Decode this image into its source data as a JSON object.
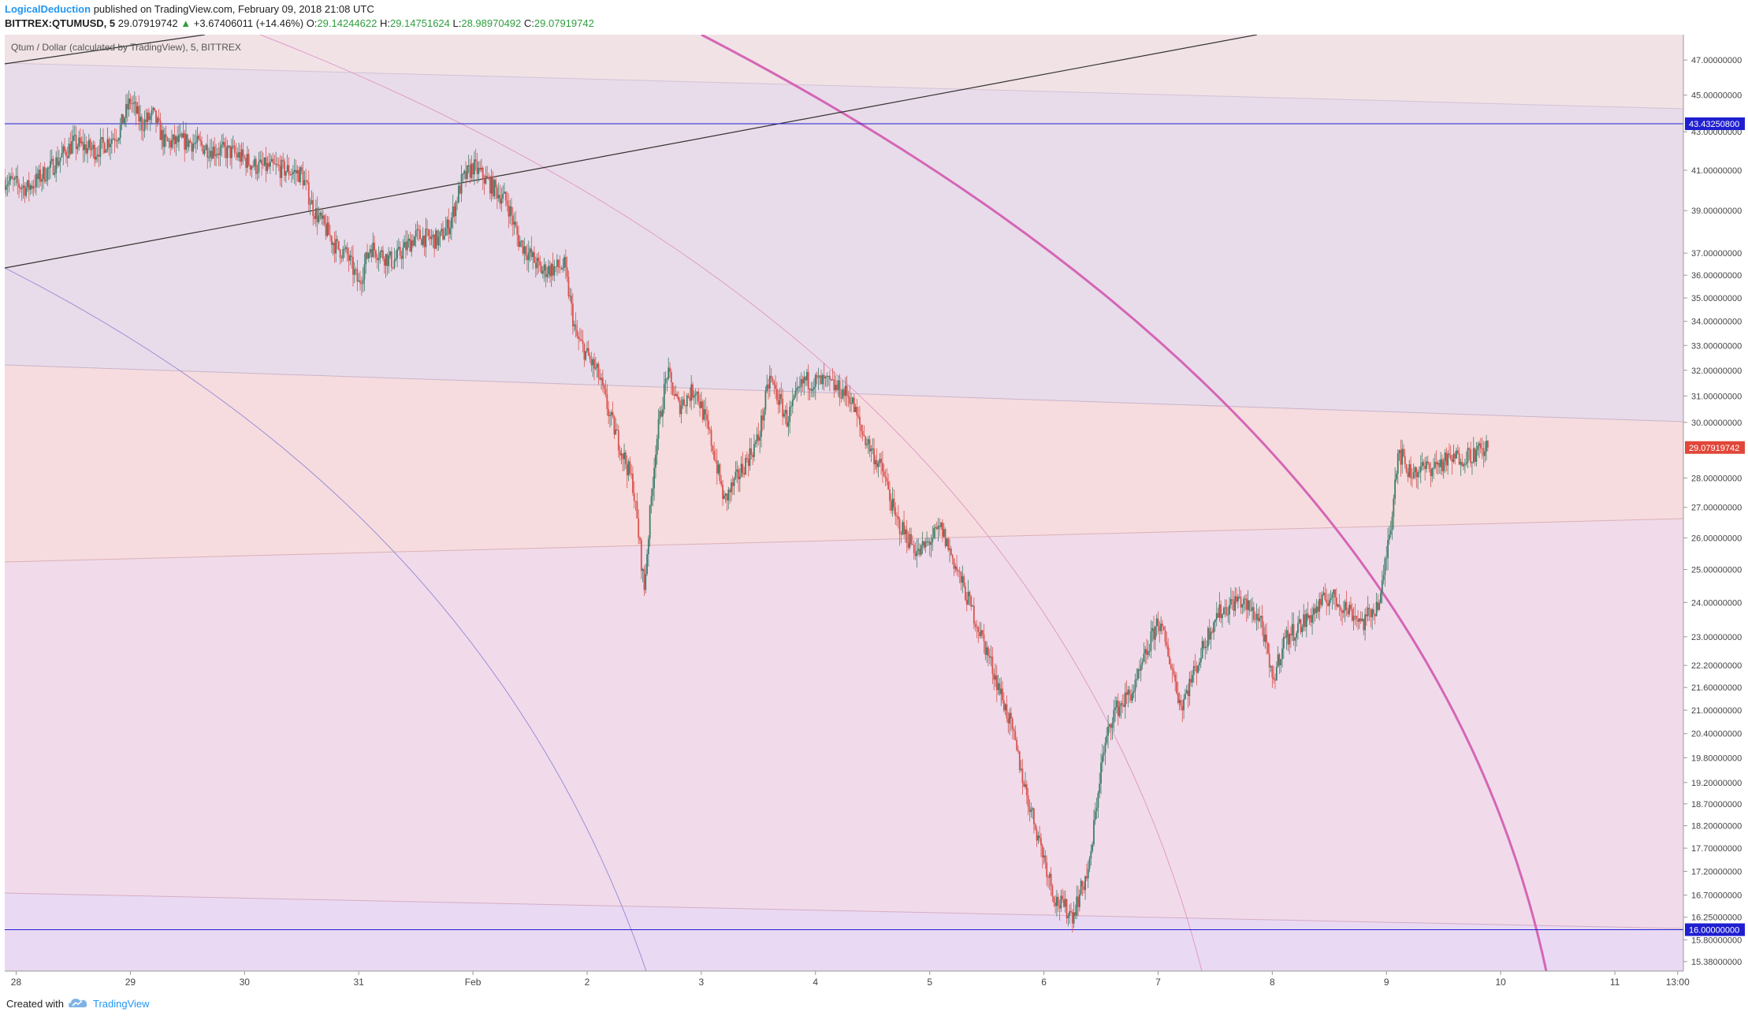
{
  "header": {
    "author": "LogicalDeduction",
    "published": "published on TradingView.com, February 09, 2018 21:08 UTC",
    "symbol": "BITTREX:QTUMUSD, 5",
    "last": "29.07919742",
    "change_arrow": "▲",
    "change": "+3.67406011 (+14.46%)",
    "open_label": "O:",
    "open": "29.14244622",
    "high_label": "H:",
    "high": "29.14751624",
    "low_label": "L:",
    "low": "28.98970492",
    "close_label": "C:",
    "close": "29.07919742"
  },
  "legend": "Qtum / Dollar (calculated by TradingView), 5, BITTREX",
  "footer": {
    "created_with": "Created with",
    "brand": "TradingView"
  },
  "colors": {
    "candle_up": "#3f7d6a",
    "candle_down": "#d9534f",
    "hline": "#1f1fd1",
    "last_tag": "#e0473a",
    "arc_strong": "#d466b6"
  },
  "chart_data": {
    "type": "line",
    "title": "Qtum / Dollar (calculated by TradingView), 5, BITTREX",
    "xlabel": "",
    "ylabel": "",
    "x_ticks": [
      "28",
      "29",
      "30",
      "31",
      "Feb",
      "2",
      "3",
      "4",
      "5",
      "6",
      "7",
      "8",
      "9",
      "10",
      "11",
      "13:00"
    ],
    "y_ticks": [
      "47.00000000",
      "45.00000000",
      "43.00000000",
      "41.00000000",
      "39.00000000",
      "37.00000000",
      "36.00000000",
      "35.00000000",
      "34.00000000",
      "33.00000000",
      "32.00000000",
      "31.00000000",
      "30.00000000",
      "28.00000000",
      "27.00000000",
      "26.00000000",
      "25.00000000",
      "24.00000000",
      "23.00000000",
      "22.20000000",
      "21.60000000",
      "21.00000000",
      "20.40000000",
      "19.80000000",
      "19.20000000",
      "18.70000000",
      "18.20000000",
      "17.70000000",
      "17.20000000",
      "16.70000000",
      "16.25000000",
      "15.80000000",
      "15.38000000"
    ],
    "y_scale": "log",
    "ylim": [
      15.2,
      48.5
    ],
    "xlim": [
      27.9,
      42.6
    ],
    "horizontal_levels": [
      "43.43250800",
      "16.00000000"
    ],
    "last_price_tag": "29.07919742",
    "series": [
      {
        "values": [
          [
            27.9,
            40.5
          ],
          [
            28.1,
            40.1
          ],
          [
            28.3,
            41.1
          ],
          [
            28.5,
            42.4
          ],
          [
            28.7,
            42.0
          ],
          [
            28.9,
            43.0
          ],
          [
            29.0,
            44.7
          ],
          [
            29.1,
            43.4
          ],
          [
            29.2,
            43.9
          ],
          [
            29.3,
            42.4
          ],
          [
            29.5,
            42.5
          ],
          [
            29.7,
            42.1
          ],
          [
            29.9,
            41.9
          ],
          [
            30.1,
            41.2
          ],
          [
            30.3,
            41.1
          ],
          [
            30.5,
            40.8
          ],
          [
            30.6,
            39.1
          ],
          [
            30.8,
            37.3
          ],
          [
            30.9,
            36.9
          ],
          [
            31.0,
            35.6
          ],
          [
            31.1,
            37.3
          ],
          [
            31.3,
            36.6
          ],
          [
            31.5,
            37.8
          ],
          [
            31.7,
            37.6
          ],
          [
            31.8,
            38.4
          ],
          [
            31.9,
            40.4
          ],
          [
            32.0,
            41.2
          ],
          [
            32.1,
            40.6
          ],
          [
            32.3,
            39.4
          ],
          [
            32.4,
            37.6
          ],
          [
            32.6,
            36.2
          ],
          [
            32.8,
            36.4
          ],
          [
            32.9,
            33.4
          ],
          [
            33.1,
            31.8
          ],
          [
            33.2,
            30.2
          ],
          [
            33.4,
            27.8
          ],
          [
            33.5,
            24.4
          ],
          [
            33.6,
            29.1
          ],
          [
            33.7,
            31.9
          ],
          [
            33.8,
            30.6
          ],
          [
            33.95,
            31.3
          ],
          [
            34.1,
            29.1
          ],
          [
            34.2,
            27.2
          ],
          [
            34.3,
            27.9
          ],
          [
            34.5,
            29.4
          ],
          [
            34.6,
            31.7
          ],
          [
            34.75,
            30.1
          ],
          [
            34.9,
            31.6
          ],
          [
            35.1,
            31.5
          ],
          [
            35.3,
            31.0
          ],
          [
            35.4,
            29.7
          ],
          [
            35.6,
            28.1
          ],
          [
            35.7,
            26.6
          ],
          [
            35.9,
            25.5
          ],
          [
            36.0,
            25.9
          ],
          [
            36.1,
            26.3
          ],
          [
            36.3,
            24.4
          ],
          [
            36.5,
            22.6
          ],
          [
            36.7,
            20.7
          ],
          [
            36.85,
            18.9
          ],
          [
            37.0,
            17.5
          ],
          [
            37.1,
            16.6
          ],
          [
            37.25,
            16.3
          ],
          [
            37.4,
            17.3
          ],
          [
            37.5,
            19.6
          ],
          [
            37.6,
            20.9
          ],
          [
            37.8,
            21.6
          ],
          [
            38.0,
            23.5
          ],
          [
            38.1,
            22.4
          ],
          [
            38.2,
            21.1
          ],
          [
            38.35,
            22.3
          ],
          [
            38.5,
            23.6
          ],
          [
            38.7,
            24.1
          ],
          [
            38.9,
            23.5
          ],
          [
            39.0,
            21.7
          ],
          [
            39.1,
            22.9
          ],
          [
            39.3,
            23.5
          ],
          [
            39.5,
            24.2
          ],
          [
            39.7,
            23.7
          ],
          [
            39.8,
            23.4
          ],
          [
            39.95,
            24.1
          ],
          [
            40.05,
            26.9
          ],
          [
            40.1,
            29.0
          ],
          [
            40.2,
            28.2
          ],
          [
            40.4,
            28.4
          ],
          [
            40.6,
            28.7
          ],
          [
            40.8,
            28.9
          ],
          [
            40.9,
            29.07
          ]
        ]
      }
    ]
  }
}
